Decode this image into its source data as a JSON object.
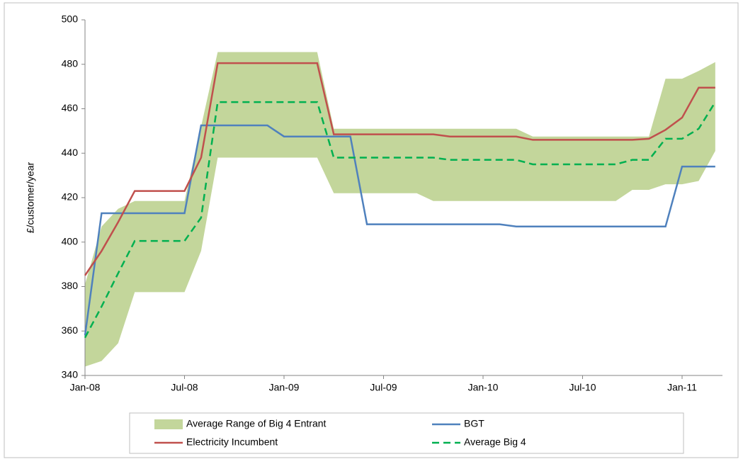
{
  "chart_data": {
    "type": "line",
    "y_label": "£/customer/year",
    "categories": [
      "Jan-08",
      null,
      null,
      null,
      null,
      null,
      "Jul-08",
      null,
      null,
      null,
      null,
      null,
      "Jan-09",
      null,
      null,
      null,
      null,
      null,
      "Jul-09",
      null,
      null,
      null,
      null,
      null,
      "Jan-10",
      null,
      null,
      null,
      null,
      null,
      "Jul-10",
      null,
      null,
      null,
      null,
      null,
      "Jan-11",
      null,
      null
    ],
    "ylim": [
      340,
      500
    ],
    "yticks": [
      340,
      360,
      380,
      400,
      420,
      440,
      460,
      480,
      500
    ],
    "grid": false,
    "legend": "bottom",
    "series": [
      {
        "name": "Average Range of Big 4 Entrant",
        "type": "range",
        "color": "#c3d69b",
        "low": [
          344,
          346.5,
          354.5,
          377.5,
          377.5,
          377.5,
          377.5,
          396,
          438,
          438,
          438,
          438,
          438,
          438,
          438,
          422,
          422,
          422,
          422,
          422,
          422,
          418.5,
          418.5,
          418.5,
          418.5,
          418.5,
          418.5,
          418.5,
          418.5,
          418.5,
          418.5,
          418.5,
          418.5,
          423.5,
          423.5,
          426,
          426,
          427.5,
          441
        ],
        "high": [
          381,
          407,
          415,
          418.5,
          418.5,
          418.5,
          418.5,
          452,
          485.5,
          485.5,
          485.5,
          485.5,
          485.5,
          485.5,
          485.5,
          451,
          451,
          451,
          451,
          451,
          451,
          451,
          451,
          451,
          451,
          451,
          451,
          447.5,
          447.5,
          447.5,
          447.5,
          447.5,
          447.5,
          447.5,
          447.5,
          473.5,
          473.5,
          477,
          481
        ]
      },
      {
        "name": "BGT",
        "color": "#4f81bd",
        "dash": false,
        "values": [
          358,
          413,
          413,
          413,
          413,
          413,
          413,
          452.5,
          452.5,
          452.5,
          452.5,
          452.5,
          447.5,
          447.5,
          447.5,
          447.5,
          447.5,
          408,
          408,
          408,
          408,
          408,
          408,
          408,
          408,
          408,
          407,
          407,
          407,
          407,
          407,
          407,
          407,
          407,
          407,
          407,
          434,
          434,
          434
        ]
      },
      {
        "name": "Electricity Incumbent",
        "color": "#c0504d",
        "dash": false,
        "values": [
          385,
          396,
          409,
          423,
          423,
          423,
          423,
          438,
          480.5,
          480.5,
          480.5,
          480.5,
          480.5,
          480.5,
          480.5,
          448.5,
          448.5,
          448.5,
          448.5,
          448.5,
          448.5,
          448.5,
          447.5,
          447.5,
          447.5,
          447.5,
          447.5,
          446,
          446,
          446,
          446,
          446,
          446,
          446,
          446.5,
          450.5,
          456,
          469.5,
          469.5
        ]
      },
      {
        "name": "Average Big 4",
        "color": "#00b050",
        "dash": true,
        "values": [
          357,
          371,
          386,
          400.5,
          400.5,
          400.5,
          400.5,
          411,
          463,
          463,
          463,
          463,
          463,
          463,
          463,
          438,
          438,
          438,
          438,
          438,
          438,
          438,
          437,
          437,
          437,
          437,
          437,
          435,
          435,
          435,
          435,
          435,
          435,
          437,
          437,
          446.5,
          446.5,
          451,
          463
        ]
      }
    ]
  }
}
